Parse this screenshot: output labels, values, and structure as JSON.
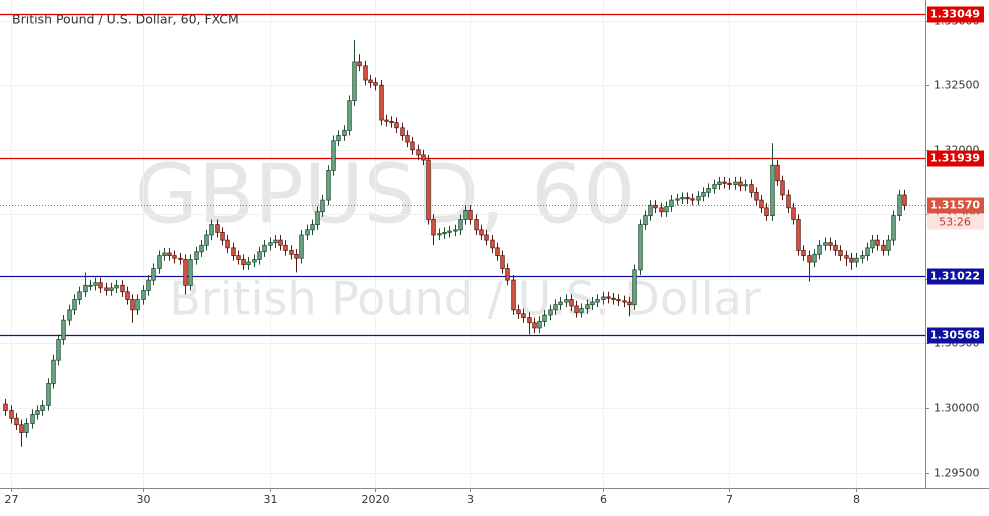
{
  "chart_data": {
    "type": "candlestick",
    "title": "British Pound / U.S. Dollar, 60, FXCM",
    "watermark": [
      "GBPUSD, 60",
      "British Pound / U.S. Dollar"
    ],
    "up_color": "#6ba583",
    "down_color": "#d75442",
    "grid": true,
    "xlim": [
      -1,
      174
    ],
    "ylim": [
      1.2938,
      1.3316
    ],
    "xticks": [
      {
        "value": 1,
        "label": "27"
      },
      {
        "value": 26,
        "label": "30"
      },
      {
        "value": 50,
        "label": "31"
      },
      {
        "value": 70,
        "label": "2020"
      },
      {
        "value": 88,
        "label": "3"
      },
      {
        "value": 113,
        "label": "6"
      },
      {
        "value": 137,
        "label": "7"
      },
      {
        "value": 161,
        "label": "8"
      }
    ],
    "yticks": [
      {
        "value": 1.295,
        "label": "1.29500"
      },
      {
        "value": 1.3,
        "label": "1.30000"
      },
      {
        "value": 1.305,
        "label": "1.30500"
      },
      {
        "value": 1.31,
        "label": "1.31000"
      },
      {
        "value": 1.315,
        "label": "1.31500"
      },
      {
        "value": 1.32,
        "label": "1.32000"
      },
      {
        "value": 1.325,
        "label": "1.32500"
      },
      {
        "value": 1.33,
        "label": "1.33000"
      }
    ],
    "levels": [
      {
        "value": 1.33049,
        "color": "#e00000"
      },
      {
        "value": 1.31939,
        "color": "#e00000"
      },
      {
        "value": 1.31022,
        "color": "#1010a0"
      },
      {
        "value": 1.30568,
        "color": "#1010a0"
      }
    ],
    "last_price": {
      "value": 1.3157,
      "label": "1.31570",
      "countdown": "53:26"
    },
    "candles": [
      [
        1.3003,
        1.3007,
        1.2994,
        1.2998
      ],
      [
        1.2998,
        1.3002,
        1.2988,
        1.2992
      ],
      [
        1.2992,
        1.2996,
        1.2983,
        1.2987
      ],
      [
        1.2987,
        1.2991,
        1.297,
        1.2981
      ],
      [
        1.2981,
        1.2992,
        1.2977,
        1.2988
      ],
      [
        1.2988,
        1.2999,
        1.2984,
        1.2995
      ],
      [
        1.2995,
        1.3002,
        1.2991,
        1.2998
      ],
      [
        1.2998,
        1.3006,
        1.2994,
        1.3002
      ],
      [
        1.3002,
        1.3023,
        1.2998,
        1.3019
      ],
      [
        1.3019,
        1.3041,
        1.3015,
        1.3037
      ],
      [
        1.3037,
        1.3057,
        1.3033,
        1.3053
      ],
      [
        1.3053,
        1.3072,
        1.3049,
        1.3068
      ],
      [
        1.3068,
        1.308,
        1.3064,
        1.3076
      ],
      [
        1.3076,
        1.3088,
        1.3072,
        1.3084
      ],
      [
        1.3084,
        1.3094,
        1.308,
        1.309
      ],
      [
        1.309,
        1.3105,
        1.3086,
        1.3095
      ],
      [
        1.3095,
        1.3099,
        1.3091,
        1.3095
      ],
      [
        1.3095,
        1.3101,
        1.3091,
        1.3097
      ],
      [
        1.3097,
        1.3101,
        1.3089,
        1.3093
      ],
      [
        1.3093,
        1.3097,
        1.3087,
        1.3091
      ],
      [
        1.3091,
        1.3097,
        1.3087,
        1.3093
      ],
      [
        1.3093,
        1.3099,
        1.3089,
        1.3095
      ],
      [
        1.3095,
        1.3099,
        1.3086,
        1.309
      ],
      [
        1.309,
        1.3094,
        1.308,
        1.3084
      ],
      [
        1.3084,
        1.3088,
        1.3066,
        1.3076
      ],
      [
        1.3076,
        1.3088,
        1.3072,
        1.3084
      ],
      [
        1.3084,
        1.3095,
        1.308,
        1.3091
      ],
      [
        1.3091,
        1.3103,
        1.3087,
        1.3099
      ],
      [
        1.3099,
        1.3112,
        1.3095,
        1.3108
      ],
      [
        1.3108,
        1.3122,
        1.3104,
        1.3118
      ],
      [
        1.3118,
        1.3124,
        1.3114,
        1.312
      ],
      [
        1.312,
        1.3124,
        1.3114,
        1.3118
      ],
      [
        1.3118,
        1.3122,
        1.3112,
        1.3116
      ],
      [
        1.3116,
        1.312,
        1.3111,
        1.3115
      ],
      [
        1.3115,
        1.3119,
        1.3088,
        1.3095
      ],
      [
        1.3095,
        1.3119,
        1.3091,
        1.3115
      ],
      [
        1.3115,
        1.3125,
        1.3111,
        1.3121
      ],
      [
        1.3121,
        1.313,
        1.3117,
        1.3126
      ],
      [
        1.3126,
        1.3138,
        1.3122,
        1.3134
      ],
      [
        1.3134,
        1.3146,
        1.313,
        1.3142
      ],
      [
        1.3142,
        1.3146,
        1.3132,
        1.3136
      ],
      [
        1.3136,
        1.314,
        1.3126,
        1.313
      ],
      [
        1.313,
        1.3134,
        1.312,
        1.3124
      ],
      [
        1.3124,
        1.3128,
        1.3114,
        1.3118
      ],
      [
        1.3118,
        1.3122,
        1.3111,
        1.3115
      ],
      [
        1.3115,
        1.3119,
        1.3107,
        1.3111
      ],
      [
        1.3111,
        1.3117,
        1.3107,
        1.3113
      ],
      [
        1.3113,
        1.3119,
        1.3109,
        1.3115
      ],
      [
        1.3115,
        1.3125,
        1.3111,
        1.3121
      ],
      [
        1.3121,
        1.313,
        1.3117,
        1.3126
      ],
      [
        1.3126,
        1.3132,
        1.3122,
        1.3128
      ],
      [
        1.3128,
        1.3134,
        1.3124,
        1.313
      ],
      [
        1.313,
        1.3134,
        1.3122,
        1.3126
      ],
      [
        1.3126,
        1.313,
        1.3118,
        1.3122
      ],
      [
        1.3122,
        1.3126,
        1.3115,
        1.3119
      ],
      [
        1.3119,
        1.3123,
        1.3105,
        1.3116
      ],
      [
        1.3116,
        1.3138,
        1.3112,
        1.3134
      ],
      [
        1.3134,
        1.3142,
        1.313,
        1.3138
      ],
      [
        1.3138,
        1.3146,
        1.3134,
        1.3142
      ],
      [
        1.3142,
        1.3156,
        1.3138,
        1.3152
      ],
      [
        1.3152,
        1.3165,
        1.3148,
        1.3161
      ],
      [
        1.3161,
        1.3188,
        1.3157,
        1.3184
      ],
      [
        1.3184,
        1.3211,
        1.318,
        1.3207
      ],
      [
        1.3207,
        1.3215,
        1.3203,
        1.3211
      ],
      [
        1.3211,
        1.3219,
        1.3207,
        1.3215
      ],
      [
        1.3215,
        1.3242,
        1.3211,
        1.3238
      ],
      [
        1.3238,
        1.3285,
        1.3234,
        1.3268
      ],
      [
        1.3268,
        1.3274,
        1.3261,
        1.3265
      ],
      [
        1.3265,
        1.3269,
        1.325,
        1.3254
      ],
      [
        1.3254,
        1.3258,
        1.3248,
        1.3252
      ],
      [
        1.3252,
        1.3256,
        1.3246,
        1.325
      ],
      [
        1.325,
        1.3254,
        1.3219,
        1.3223
      ],
      [
        1.3223,
        1.3227,
        1.3218,
        1.3222
      ],
      [
        1.3222,
        1.3226,
        1.3217,
        1.3221
      ],
      [
        1.3221,
        1.3225,
        1.3213,
        1.3217
      ],
      [
        1.3217,
        1.3221,
        1.3207,
        1.3211
      ],
      [
        1.3211,
        1.3215,
        1.3202,
        1.3206
      ],
      [
        1.3206,
        1.321,
        1.3196,
        1.32
      ],
      [
        1.32,
        1.3204,
        1.3192,
        1.3196
      ],
      [
        1.3196,
        1.32,
        1.3188,
        1.3192
      ],
      [
        1.3192,
        1.3196,
        1.3142,
        1.3146
      ],
      [
        1.3146,
        1.315,
        1.3126,
        1.3134
      ],
      [
        1.3134,
        1.3139,
        1.313,
        1.3135
      ],
      [
        1.3135,
        1.314,
        1.3131,
        1.3136
      ],
      [
        1.3136,
        1.3141,
        1.3132,
        1.3137
      ],
      [
        1.3137,
        1.3142,
        1.3133,
        1.3138
      ],
      [
        1.3138,
        1.315,
        1.3134,
        1.3146
      ],
      [
        1.3146,
        1.3157,
        1.3142,
        1.3153
      ],
      [
        1.3153,
        1.3157,
        1.3142,
        1.3146
      ],
      [
        1.3146,
        1.315,
        1.3134,
        1.3138
      ],
      [
        1.3138,
        1.3142,
        1.313,
        1.3134
      ],
      [
        1.3134,
        1.3138,
        1.3126,
        1.313
      ],
      [
        1.313,
        1.3134,
        1.312,
        1.3124
      ],
      [
        1.3124,
        1.3128,
        1.3114,
        1.3118
      ],
      [
        1.3118,
        1.3122,
        1.3104,
        1.3108
      ],
      [
        1.3108,
        1.3112,
        1.3095,
        1.3099
      ],
      [
        1.3099,
        1.3103,
        1.3072,
        1.3076
      ],
      [
        1.3076,
        1.308,
        1.3069,
        1.3073
      ],
      [
        1.3073,
        1.3077,
        1.3066,
        1.307
      ],
      [
        1.307,
        1.3074,
        1.3057,
        1.3066
      ],
      [
        1.3066,
        1.307,
        1.3058,
        1.3062
      ],
      [
        1.3062,
        1.3071,
        1.3058,
        1.3067
      ],
      [
        1.3067,
        1.3076,
        1.3063,
        1.3072
      ],
      [
        1.3072,
        1.308,
        1.3068,
        1.3076
      ],
      [
        1.3076,
        1.3084,
        1.3072,
        1.308
      ],
      [
        1.308,
        1.3086,
        1.3076,
        1.3082
      ],
      [
        1.3082,
        1.3088,
        1.3078,
        1.3084
      ],
      [
        1.3084,
        1.3088,
        1.3075,
        1.3079
      ],
      [
        1.3079,
        1.3083,
        1.307,
        1.3074
      ],
      [
        1.3074,
        1.3081,
        1.307,
        1.3077
      ],
      [
        1.3077,
        1.3084,
        1.3073,
        1.308
      ],
      [
        1.308,
        1.3086,
        1.3076,
        1.3082
      ],
      [
        1.3082,
        1.3088,
        1.3078,
        1.3084
      ],
      [
        1.3084,
        1.309,
        1.308,
        1.3086
      ],
      [
        1.3086,
        1.309,
        1.3081,
        1.3085
      ],
      [
        1.3085,
        1.3089,
        1.308,
        1.3084
      ],
      [
        1.3084,
        1.3088,
        1.3079,
        1.3083
      ],
      [
        1.3083,
        1.3087,
        1.3078,
        1.3082
      ],
      [
        1.3082,
        1.3086,
        1.3071,
        1.308
      ],
      [
        1.308,
        1.3111,
        1.3076,
        1.3107
      ],
      [
        1.3107,
        1.3146,
        1.3103,
        1.3142
      ],
      [
        1.3142,
        1.3153,
        1.3138,
        1.3149
      ],
      [
        1.3149,
        1.3161,
        1.3145,
        1.3157
      ],
      [
        1.3157,
        1.3161,
        1.3151,
        1.3155
      ],
      [
        1.3155,
        1.3159,
        1.3148,
        1.3152
      ],
      [
        1.3152,
        1.316,
        1.3148,
        1.3156
      ],
      [
        1.3156,
        1.3165,
        1.3152,
        1.3161
      ],
      [
        1.3161,
        1.3166,
        1.3157,
        1.3162
      ],
      [
        1.3162,
        1.3167,
        1.3158,
        1.3163
      ],
      [
        1.3163,
        1.3167,
        1.3158,
        1.3162
      ],
      [
        1.3162,
        1.3166,
        1.3157,
        1.3161
      ],
      [
        1.3161,
        1.3168,
        1.3157,
        1.3164
      ],
      [
        1.3164,
        1.3171,
        1.316,
        1.3167
      ],
      [
        1.3167,
        1.3174,
        1.3163,
        1.317
      ],
      [
        1.317,
        1.3177,
        1.3166,
        1.3173
      ],
      [
        1.3173,
        1.3179,
        1.3169,
        1.3175
      ],
      [
        1.3175,
        1.3179,
        1.317,
        1.3174
      ],
      [
        1.3174,
        1.3178,
        1.3169,
        1.3173
      ],
      [
        1.3173,
        1.3179,
        1.3169,
        1.3175
      ],
      [
        1.3175,
        1.3179,
        1.3168,
        1.3172
      ],
      [
        1.3172,
        1.3177,
        1.3168,
        1.3173
      ],
      [
        1.3173,
        1.3177,
        1.3163,
        1.3167
      ],
      [
        1.3167,
        1.3171,
        1.3157,
        1.3161
      ],
      [
        1.3161,
        1.3165,
        1.3151,
        1.3155
      ],
      [
        1.3155,
        1.3159,
        1.3145,
        1.3149
      ],
      [
        1.3149,
        1.3205,
        1.3145,
        1.3188
      ],
      [
        1.3188,
        1.3192,
        1.3172,
        1.3176
      ],
      [
        1.3176,
        1.318,
        1.3161,
        1.3165
      ],
      [
        1.3165,
        1.3169,
        1.3151,
        1.3155
      ],
      [
        1.3155,
        1.3159,
        1.3142,
        1.3146
      ],
      [
        1.3146,
        1.315,
        1.3118,
        1.3122
      ],
      [
        1.3122,
        1.3126,
        1.3114,
        1.3118
      ],
      [
        1.3118,
        1.3122,
        1.3098,
        1.3113
      ],
      [
        1.3113,
        1.3123,
        1.3109,
        1.3119
      ],
      [
        1.3119,
        1.313,
        1.3115,
        1.3126
      ],
      [
        1.3126,
        1.3132,
        1.3122,
        1.3128
      ],
      [
        1.3128,
        1.3132,
        1.3122,
        1.3126
      ],
      [
        1.3126,
        1.313,
        1.3118,
        1.3122
      ],
      [
        1.3122,
        1.3126,
        1.3114,
        1.3118
      ],
      [
        1.3118,
        1.3122,
        1.311,
        1.3116
      ],
      [
        1.3116,
        1.312,
        1.3107,
        1.3113
      ],
      [
        1.3113,
        1.312,
        1.3109,
        1.3116
      ],
      [
        1.3116,
        1.3122,
        1.3112,
        1.3118
      ],
      [
        1.3118,
        1.3128,
        1.3114,
        1.3124
      ],
      [
        1.3124,
        1.3134,
        1.312,
        1.313
      ],
      [
        1.313,
        1.3134,
        1.3122,
        1.3126
      ],
      [
        1.3126,
        1.313,
        1.3118,
        1.3122
      ],
      [
        1.3122,
        1.3134,
        1.3118,
        1.313
      ],
      [
        1.313,
        1.3153,
        1.3126,
        1.3149
      ],
      [
        1.3149,
        1.3169,
        1.3145,
        1.3165
      ],
      [
        1.3165,
        1.3169,
        1.3153,
        1.3157
      ]
    ]
  }
}
